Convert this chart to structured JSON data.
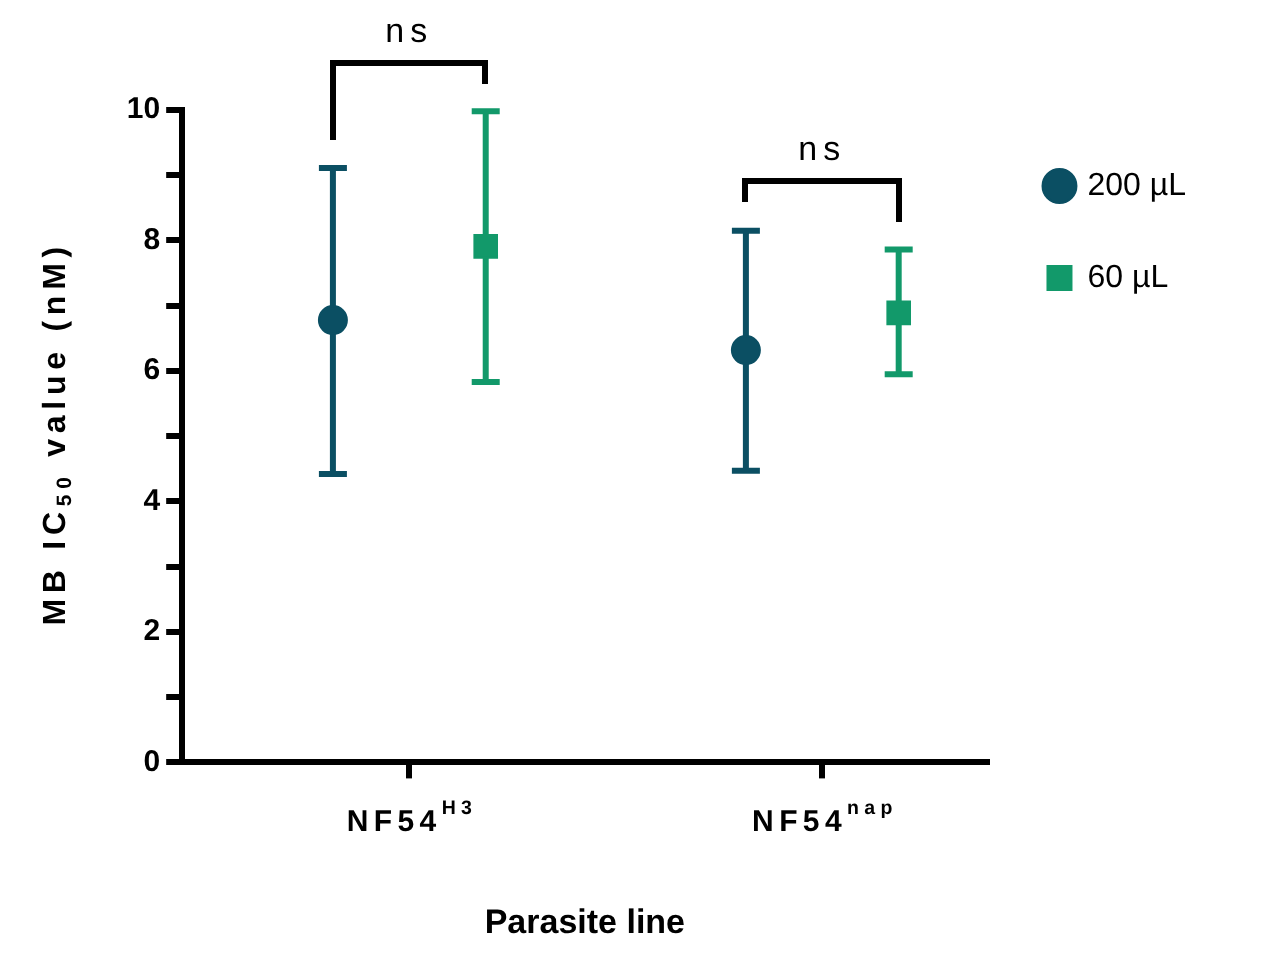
{
  "chart_data": {
    "type": "scatter",
    "xlabel": "Parasite line",
    "ylabel": "MB IC$_{50}$ value (nM)",
    "categories": [
      "NF54$^{H3}$",
      "NF54$^{nap}$"
    ],
    "series": [
      {
        "name": "200 µL",
        "color": "#0b4f63",
        "marker": "circle",
        "values": [
          6.78,
          6.32
        ],
        "errors": [
          [
            4.42,
            9.11
          ],
          [
            4.47,
            8.15
          ]
        ]
      },
      {
        "name": "60 µL",
        "color": "#12996a",
        "marker": "square",
        "values": [
          7.91,
          6.89
        ],
        "errors": [
          [
            5.83,
            9.98
          ],
          [
            5.95,
            7.86
          ]
        ]
      }
    ],
    "ylim": [
      0,
      10
    ],
    "yticks": [
      0,
      {
        "value": 1,
        "label": null
      },
      2,
      {
        "value": 3,
        "label": null
      },
      4,
      {
        "value": 5,
        "label": null
      },
      6,
      {
        "value": 7,
        "label": null
      },
      8,
      {
        "value": 9,
        "label": null
      },
      10
    ],
    "annotations": [
      "ns",
      "ns"
    ],
    "legend": "right",
    "grid": false
  }
}
